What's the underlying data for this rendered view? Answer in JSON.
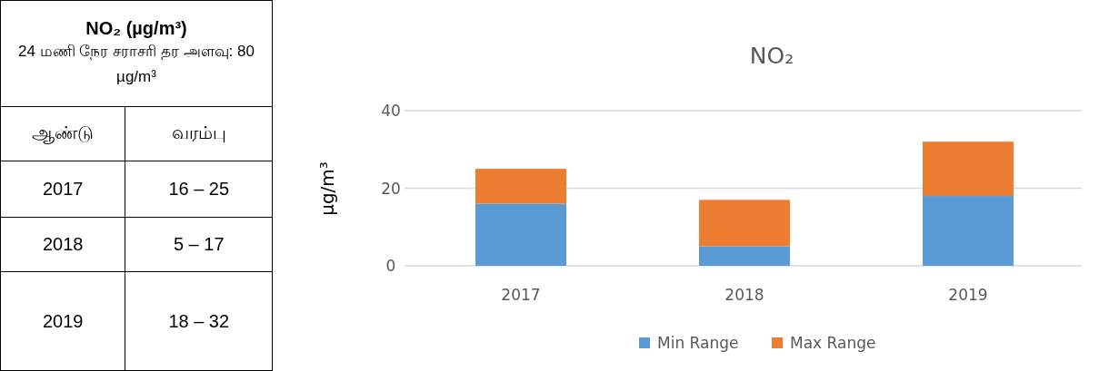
{
  "chart_data": [
    {
      "type": "other",
      "title": "NO₂ (µg/m³)",
      "subtitle": "24 மணி நேர சராசரி தர அளவு: 80 µg/m³",
      "annotations": [
        "ஆண்டு",
        "வரம்பு",
        "2017",
        "16 – 25",
        "2018",
        "5 – 17",
        "2019",
        "18 – 32"
      ]
    },
    {
      "type": "bar",
      "title": "NO₂",
      "ylabel": "µg/m³",
      "categories": [
        "2017",
        "2018",
        "2019"
      ],
      "stacked": true,
      "series": [
        {
          "name": "Min Range",
          "color": "#5b9bd5",
          "values": [
            16,
            5,
            18
          ]
        },
        {
          "name": "Max Range",
          "color": "#ed7d31",
          "values": [
            9,
            12,
            14
          ]
        }
      ],
      "ylim": [
        0,
        40
      ],
      "yticks": [
        0,
        20,
        40
      ],
      "grid": "y",
      "legend": "bottom"
    }
  ]
}
